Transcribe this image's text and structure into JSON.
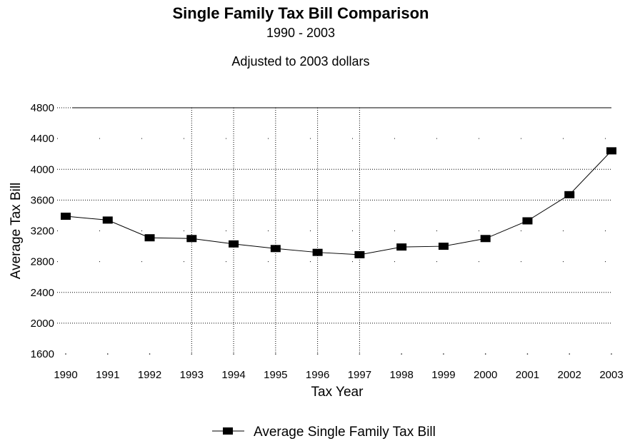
{
  "chart_data": {
    "type": "line",
    "title": "Single Family Tax Bill Comparison",
    "subtitle": "1990 - 2003",
    "note": "Adjusted to 2003 dollars",
    "xlabel": "Tax Year",
    "ylabel": "Average Tax Bill",
    "categories": [
      "1990",
      "1991",
      "1992",
      "1993",
      "1994",
      "1995",
      "1996",
      "1997",
      "1998",
      "1999",
      "2000",
      "2001",
      "2002",
      "2003"
    ],
    "ylim": [
      1600,
      4800
    ],
    "yticks": [
      "1600",
      "2000",
      "2400",
      "2800",
      "3200",
      "3600",
      "4000",
      "4400",
      "4800"
    ],
    "series": [
      {
        "name": "Average Single Family Tax Bill",
        "values": [
          3390,
          3340,
          3110,
          3100,
          3030,
          2970,
          2920,
          2890,
          2990,
          3000,
          3100,
          3330,
          3670,
          4240
        ]
      }
    ],
    "grid": "horizontal dotted at each y tick; vertical dotted at 1993-1997",
    "vgrid_years": [
      "1993",
      "1994",
      "1995",
      "1996",
      "1997"
    ],
    "legend_position": "bottom-center",
    "line_color": "#000000"
  }
}
